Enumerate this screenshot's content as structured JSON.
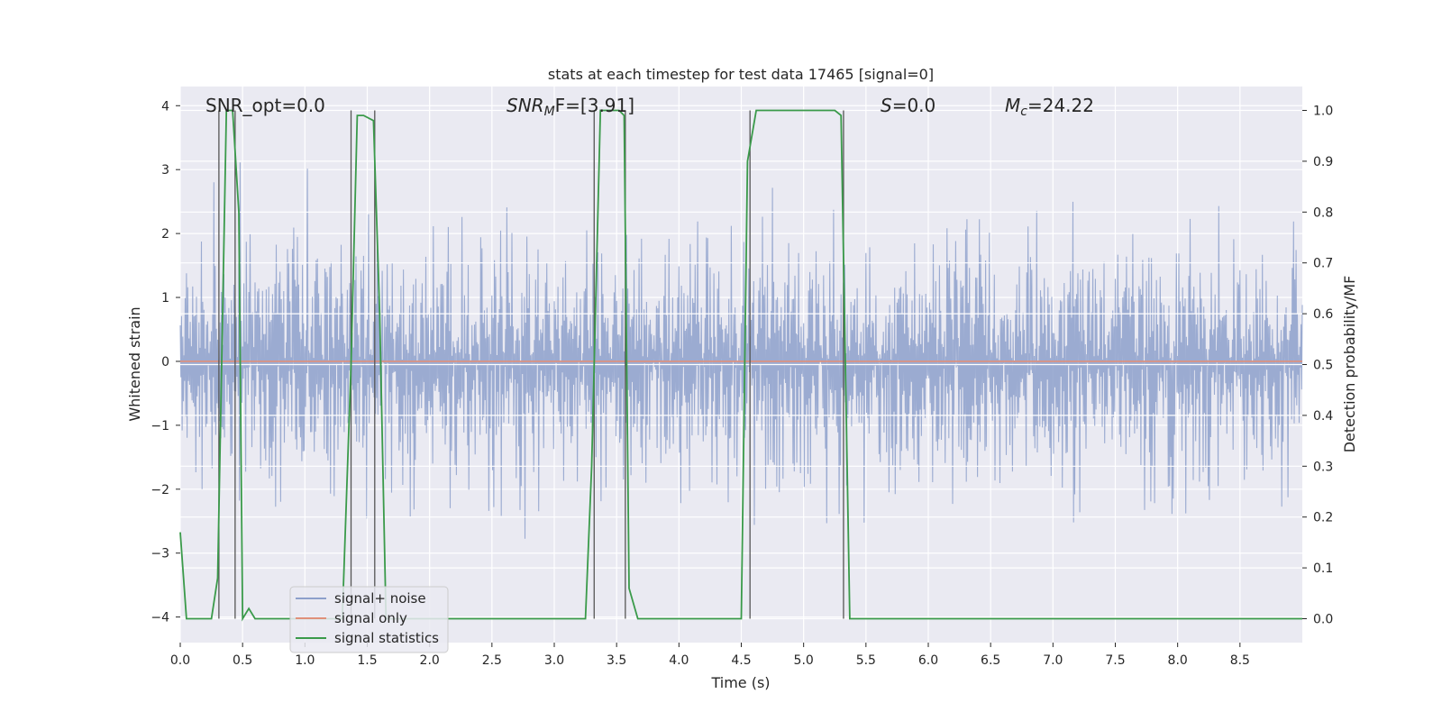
{
  "chart_data": {
    "type": "line",
    "title": "stats at each timestep for test data 17465 [signal=0]",
    "xlabel": "Time (s)",
    "ylabel": "Whitened strain",
    "y2label": "Detection probability/MF",
    "xlim": [
      0.0,
      9.0
    ],
    "ylim": [
      -4.4,
      4.3
    ],
    "y2lim": [
      -0.047,
      1.047
    ],
    "xticks": [
      "0.0",
      "0.5",
      "1.0",
      "1.5",
      "2.0",
      "2.5",
      "3.0",
      "3.5",
      "4.0",
      "4.5",
      "5.0",
      "5.5",
      "6.0",
      "6.5",
      "7.0",
      "7.5",
      "8.0",
      "8.5"
    ],
    "yticks": [
      "4",
      "3",
      "2",
      "1",
      "0",
      "−1",
      "−2",
      "−3",
      "−4"
    ],
    "y2ticks": [
      "1.0",
      "0.9",
      "0.8",
      "0.7",
      "0.6",
      "0.5",
      "0.4",
      "0.3",
      "0.2",
      "0.1",
      "0.0"
    ],
    "grid": true,
    "legend_position": "lower-left",
    "annotations": {
      "snr_opt": "SNR_opt=0.0",
      "snr_mf_prefix": "SNR",
      "snr_mf_sub": "M",
      "snr_mf_suffix": "F=[3.91]",
      "s_prefix": "S",
      "s_suffix": "=0.0",
      "mc_prefix": "M",
      "mc_sub": "c",
      "mc_suffix": "=24.22"
    },
    "series": [
      {
        "name": "signal+ noise",
        "color": "#8da0cb",
        "description": "whitened noise, approximately uniform amplitude within about ±2.5 with spikes to about ±4",
        "envelope": {
          "typical_abs": 2.3,
          "peak_abs": 4.0,
          "x_range": [
            0.0,
            9.0
          ]
        }
      },
      {
        "name": "signal only",
        "color": "#e0907a",
        "x": [
          0.0,
          9.0
        ],
        "y": [
          0.0,
          0.0
        ]
      },
      {
        "name": "signal statistics",
        "color": "#3a9a4a",
        "axis": "right",
        "x": [
          0.0,
          0.05,
          0.25,
          0.3,
          0.37,
          0.42,
          0.47,
          0.5,
          0.55,
          0.6,
          1.3,
          1.37,
          1.42,
          1.47,
          1.55,
          1.6,
          1.65,
          3.25,
          3.3,
          3.37,
          3.43,
          3.52,
          3.56,
          3.6,
          3.67,
          4.5,
          4.55,
          4.62,
          4.7,
          5.25,
          5.3,
          5.37,
          5.42,
          9.0
        ],
        "y": [
          0.17,
          0.0,
          0.0,
          0.08,
          1.0,
          1.0,
          0.8,
          0.0,
          0.02,
          0.0,
          0.0,
          0.5,
          0.99,
          0.99,
          0.98,
          0.6,
          0.0,
          0.0,
          0.3,
          1.0,
          1.0,
          1.0,
          0.99,
          0.06,
          0.0,
          0.0,
          0.9,
          1.0,
          1.0,
          1.0,
          0.99,
          0.0,
          0.0,
          0.0
        ]
      }
    ],
    "vertical_markers_x": [
      0.31,
      0.44,
      1.37,
      1.56,
      3.32,
      3.57,
      4.57,
      5.32
    ]
  }
}
